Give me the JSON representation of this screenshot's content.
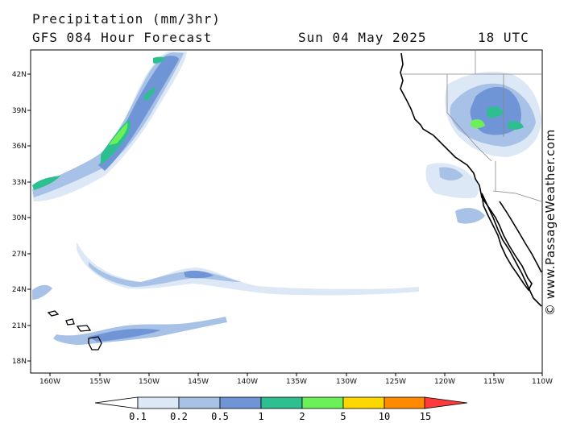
{
  "header": {
    "title": "Precipitation (mm/3hr)",
    "subtitle": "GFS 084 Hour Forecast",
    "date": "Sun 04 May 2025",
    "time": "18 UTC"
  },
  "map": {
    "lon_range": [
      -162,
      -110
    ],
    "lat_range": [
      17,
      44
    ],
    "lat_ticks": [
      "42N",
      "39N",
      "36N",
      "33N",
      "30N",
      "27N",
      "24N",
      "21N",
      "18N"
    ],
    "lon_ticks": [
      "160W",
      "155W",
      "150W",
      "145W",
      "140W",
      "135W",
      "130W",
      "125W",
      "120W",
      "115W",
      "110W"
    ],
    "credit": "© www.PassageWeather.com"
  },
  "legend": {
    "labels": [
      "0.1",
      "0.2",
      "0.5",
      "1",
      "2",
      "5",
      "10",
      "15"
    ],
    "colors": [
      "#ffffff",
      "#dde8f6",
      "#a8c1e6",
      "#6f95d6",
      "#2dbf8f",
      "#6cf05a",
      "#ffd700",
      "#ff8a00",
      "#ff3a3a"
    ]
  }
}
